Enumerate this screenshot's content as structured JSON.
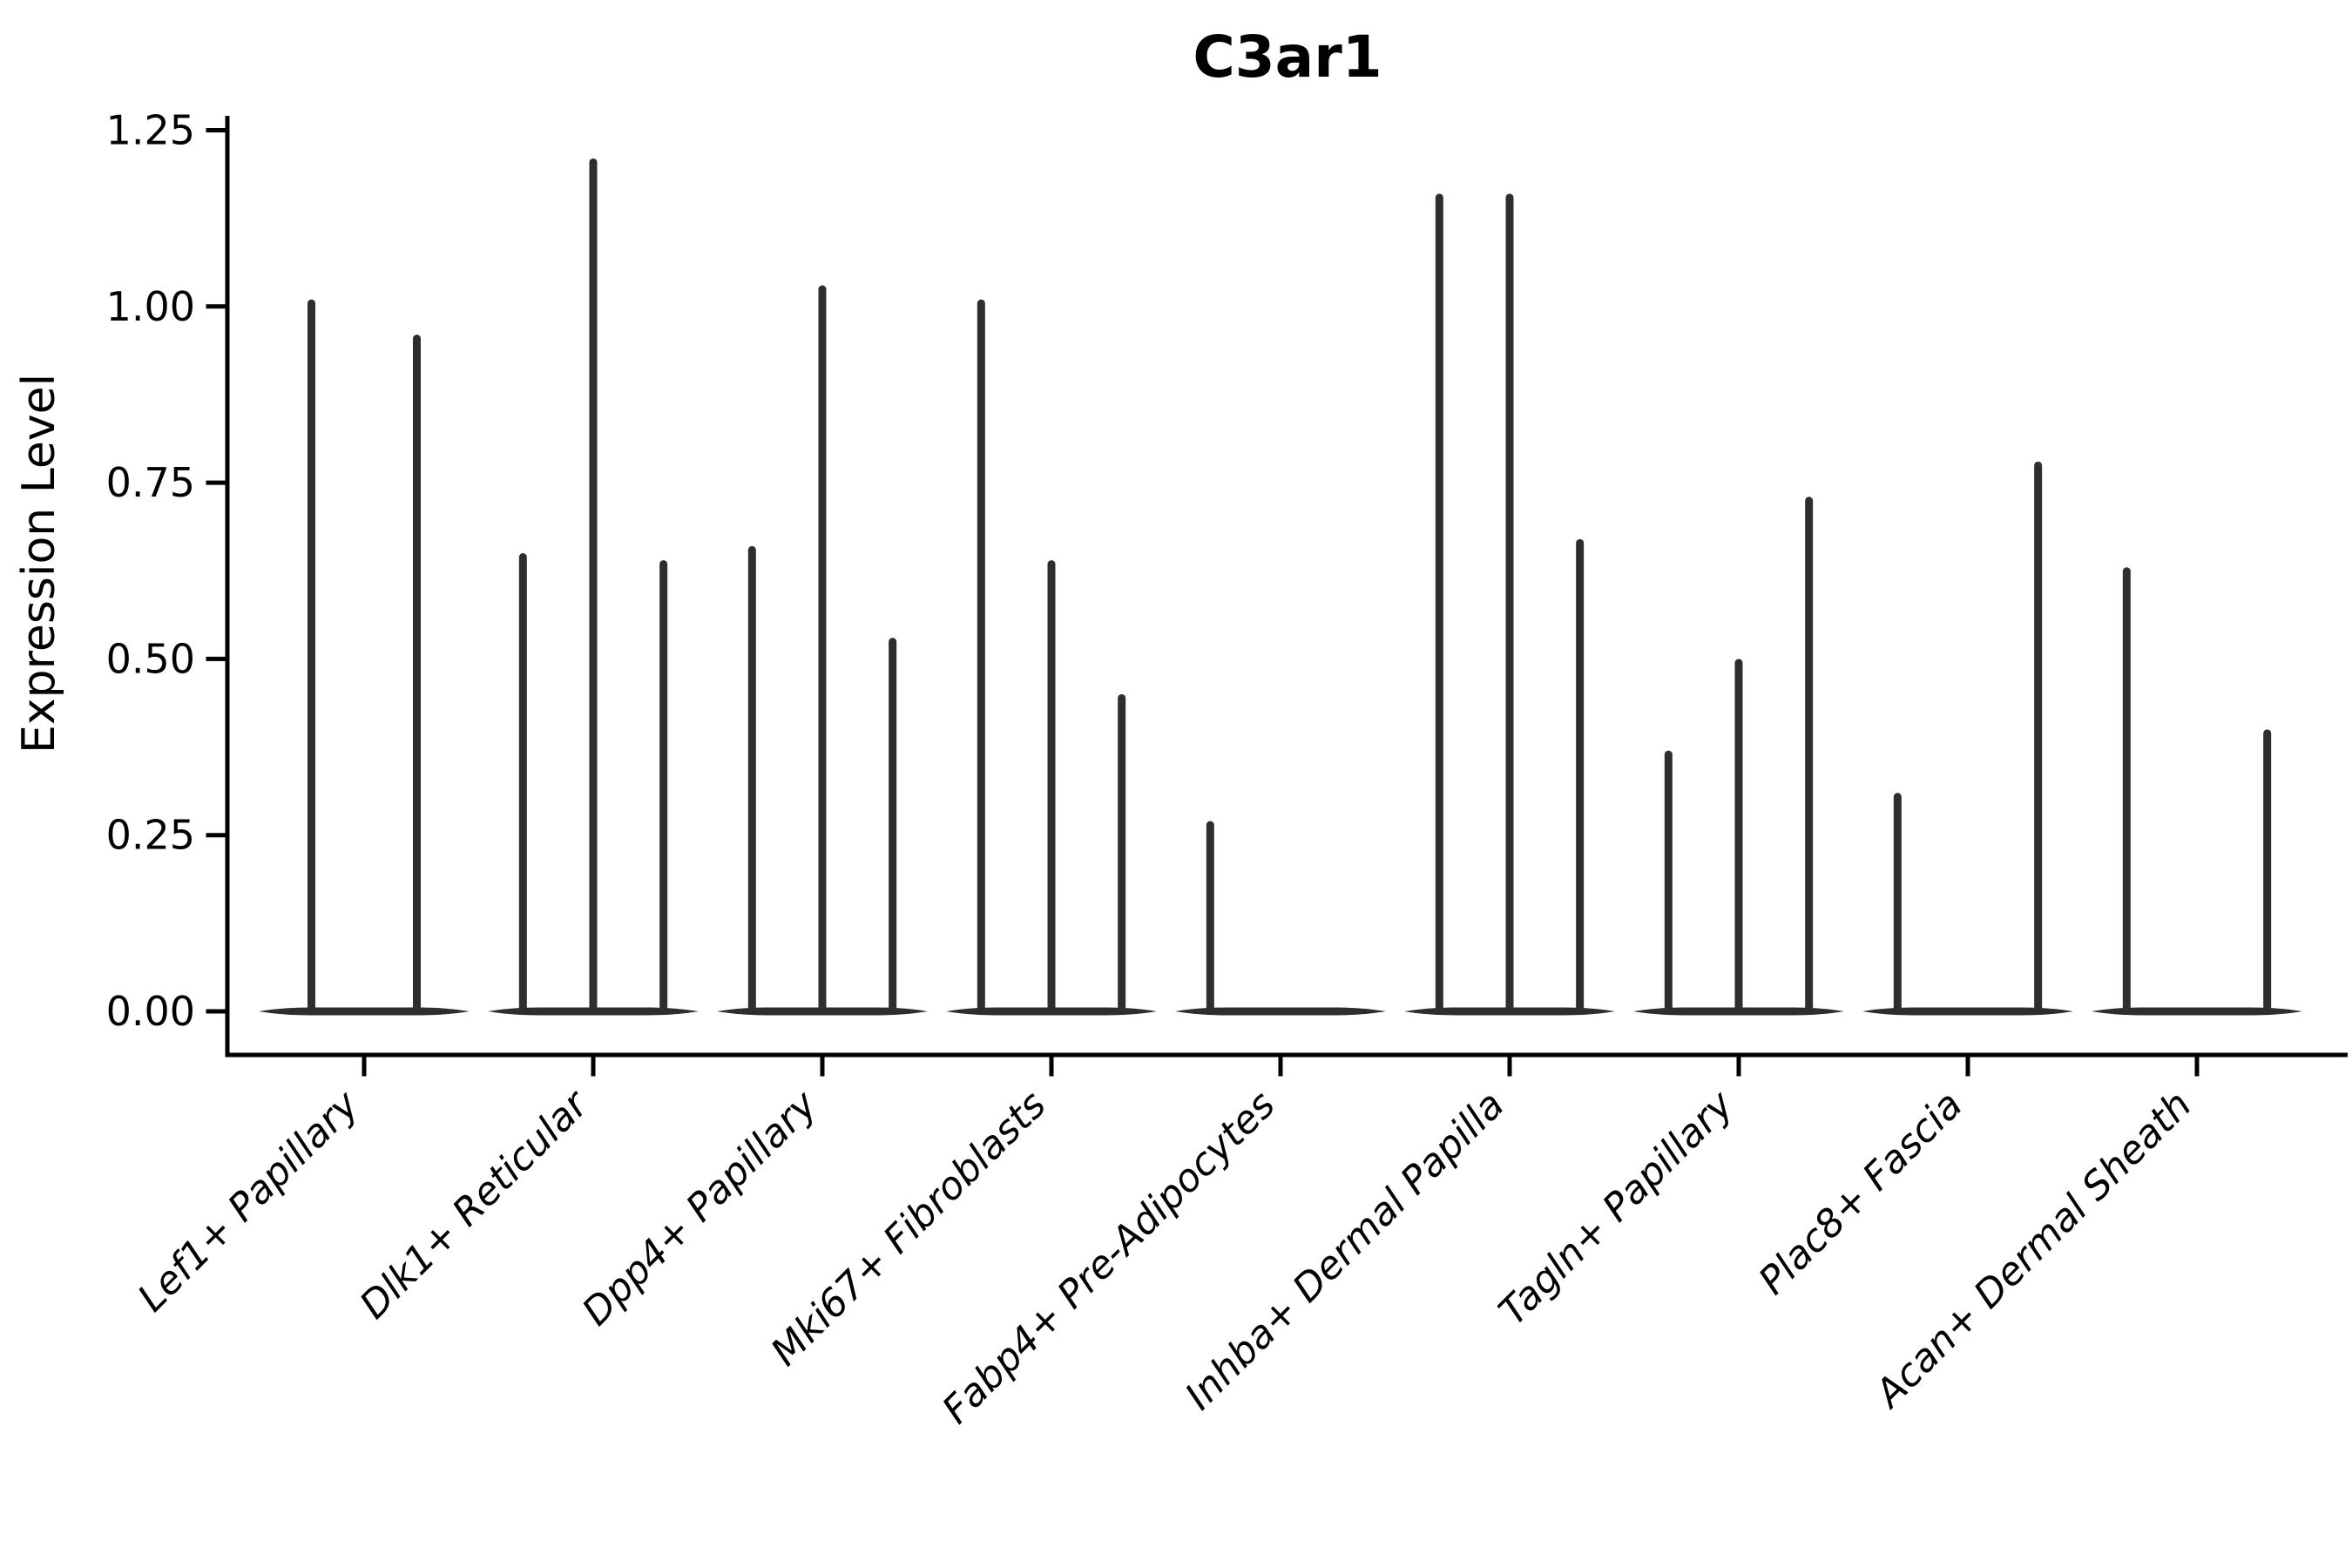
{
  "title": "C3ar1",
  "y_axis": {
    "label": "Expression Level",
    "tick_labels": [
      "0.00",
      "0.25",
      "0.50",
      "0.75",
      "1.00",
      "1.25"
    ]
  },
  "chart_data": {
    "type": "violin",
    "title": "C3ar1",
    "xlabel": "",
    "ylabel": "Expression Level",
    "ylim": [
      0,
      1.25
    ],
    "grid": false,
    "legend": "none",
    "yticks": [
      {
        "value": 0.0,
        "label": "0.00"
      },
      {
        "value": 0.25,
        "label": "0.25"
      },
      {
        "value": 0.5,
        "label": "0.50"
      },
      {
        "value": 0.75,
        "label": "0.75"
      },
      {
        "value": 1.0,
        "label": "1.00"
      },
      {
        "value": 1.25,
        "label": "1.25"
      }
    ],
    "categories": [
      "Lef1+ Papillary",
      "Dlk1+ Reticular",
      "Dpp4+ Papillary",
      "Mki67+ Fibroblasts",
      "Fabp4+ Pre-Adipocytes",
      "Inhba+ Dermal Papilla",
      "Tagln+ Papillary",
      "Plac8+ Fascia",
      "Acan+ Dermal Sheath"
    ],
    "description": "Each category shows a flat violin baseline at expression 0 with thin needle violins; 'max' is the top expression value of each needle.",
    "groups": [
      {
        "category": "Lef1+ Papillary",
        "slots": 2,
        "violins": [
          {
            "slot": 1,
            "max": 1.01
          },
          {
            "slot": 2,
            "max": 0.96
          }
        ]
      },
      {
        "category": "Dlk1+ Reticular",
        "slots": 3,
        "violins": [
          {
            "slot": 1,
            "max": 0.65
          },
          {
            "slot": 2,
            "max": 1.21
          },
          {
            "slot": 3,
            "max": 0.64
          }
        ]
      },
      {
        "category": "Dpp4+ Papillary",
        "slots": 3,
        "violins": [
          {
            "slot": 1,
            "max": 0.66
          },
          {
            "slot": 2,
            "max": 1.03
          },
          {
            "slot": 3,
            "max": 0.53
          }
        ]
      },
      {
        "category": "Mki67+ Fibroblasts",
        "slots": 3,
        "violins": [
          {
            "slot": 1,
            "max": 1.01
          },
          {
            "slot": 2,
            "max": 0.64
          },
          {
            "slot": 3,
            "max": 0.45
          }
        ]
      },
      {
        "category": "Fabp4+ Pre-Adipocytes",
        "slots": 3,
        "violins": [
          {
            "slot": 1,
            "max": 0.27
          }
        ]
      },
      {
        "category": "Inhba+ Dermal Papilla",
        "slots": 3,
        "violins": [
          {
            "slot": 1,
            "max": 1.16
          },
          {
            "slot": 2,
            "max": 1.16
          },
          {
            "slot": 3,
            "max": 0.67
          }
        ]
      },
      {
        "category": "Tagln+ Papillary",
        "slots": 3,
        "violins": [
          {
            "slot": 1,
            "max": 0.37
          },
          {
            "slot": 2,
            "max": 0.5
          },
          {
            "slot": 3,
            "max": 0.73
          }
        ]
      },
      {
        "category": "Plac8+ Fascia",
        "slots": 3,
        "violins": [
          {
            "slot": 1,
            "max": 0.31
          },
          {
            "slot": 3,
            "max": 0.78
          }
        ]
      },
      {
        "category": "Acan+ Dermal Sheath",
        "slots": 3,
        "violins": [
          {
            "slot": 1,
            "max": 0.63
          },
          {
            "slot": 3,
            "max": 0.4
          }
        ]
      }
    ],
    "colors": {
      "violin": "#2e2e2e",
      "axis": "#000000",
      "text": "#000000",
      "background": "#ffffff"
    }
  }
}
